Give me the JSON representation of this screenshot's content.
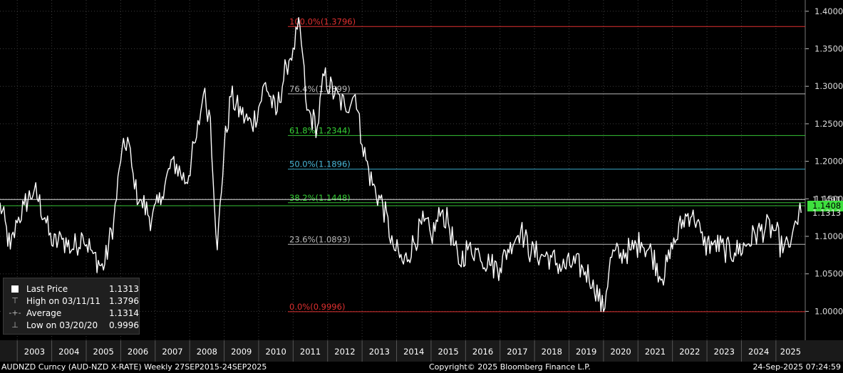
{
  "chart_data": {
    "type": "line",
    "title": "",
    "xlabel": "",
    "ylabel": "",
    "x_tick_labels": [
      "2003",
      "2004",
      "2005",
      "2006",
      "2007",
      "2008",
      "2009",
      "2010",
      "2011",
      "2012",
      "2013",
      "2014",
      "2015",
      "2016",
      "2017",
      "2018",
      "2019",
      "2020",
      "2021",
      "2022",
      "2023",
      "2024",
      "2025"
    ],
    "y_tick_labels": [
      "1.4000",
      "1.3500",
      "1.3000",
      "1.2500",
      "1.2000",
      "1.1500",
      "1.1000",
      "1.0500",
      "1.0000"
    ],
    "ylim": [
      0.9615,
      1.415
    ],
    "xlim": [
      2002.5,
      2025.85
    ],
    "grid": true,
    "series": [
      {
        "name": "AUDNZD Curncy",
        "color": "#ffffff",
        "x": [
          2002.5,
          2002.8,
          2003.0,
          2003.2,
          2003.5,
          2003.8,
          2004.0,
          2004.3,
          2004.6,
          2004.9,
          2005.2,
          2005.5,
          2005.8,
          2006.0,
          2006.2,
          2006.4,
          2006.6,
          2006.9,
          2007.2,
          2007.5,
          2007.9,
          2008.2,
          2008.4,
          2008.6,
          2008.8,
          2009.0,
          2009.2,
          2009.5,
          2009.8,
          2010.0,
          2010.2,
          2010.5,
          2010.8,
          2011.0,
          2011.2,
          2011.4,
          2011.7,
          2011.9,
          2012.2,
          2012.5,
          2012.8,
          2013.0,
          2013.3,
          2013.6,
          2013.9,
          2014.2,
          2014.5,
          2014.8,
          2015.0,
          2015.3,
          2015.5,
          2015.8,
          2016.1,
          2016.4,
          2016.7,
          2017.0,
          2017.3,
          2017.6,
          2017.9,
          2018.2,
          2018.5,
          2018.8,
          2019.1,
          2019.4,
          2019.7,
          2020.0,
          2020.2,
          2020.5,
          2020.8,
          2021.1,
          2021.4,
          2021.7,
          2022.0,
          2022.3,
          2022.6,
          2022.9,
          2023.2,
          2023.5,
          2023.8,
          2024.1,
          2024.4,
          2024.7,
          2025.0,
          2025.2,
          2025.45,
          2025.6,
          2025.73
        ],
        "values": [
          1.145,
          1.083,
          1.118,
          1.142,
          1.163,
          1.125,
          1.088,
          1.096,
          1.083,
          1.101,
          1.077,
          1.055,
          1.122,
          1.2,
          1.232,
          1.163,
          1.148,
          1.122,
          1.153,
          1.203,
          1.172,
          1.232,
          1.29,
          1.258,
          1.082,
          1.218,
          1.286,
          1.262,
          1.248,
          1.272,
          1.305,
          1.262,
          1.328,
          1.351,
          1.3796,
          1.268,
          1.246,
          1.314,
          1.288,
          1.274,
          1.289,
          1.222,
          1.168,
          1.142,
          1.088,
          1.063,
          1.092,
          1.12,
          1.0996,
          1.132,
          1.118,
          1.063,
          1.088,
          1.077,
          1.062,
          1.058,
          1.092,
          1.108,
          1.078,
          1.076,
          1.072,
          1.058,
          1.063,
          1.058,
          1.042,
          0.9996,
          1.072,
          1.078,
          1.082,
          1.092,
          1.078,
          1.043,
          1.083,
          1.122,
          1.135,
          1.088,
          1.092,
          1.083,
          1.078,
          1.088,
          1.102,
          1.112,
          1.108,
          1.078,
          1.096,
          1.118,
          1.1313
        ]
      }
    ],
    "fib_levels": [
      {
        "label": "100.0%(1.3796)",
        "value": 1.3796,
        "color": "#e03030",
        "text_color": "#e03030"
      },
      {
        "label": "76.4%(1.2899)",
        "value": 1.2899,
        "color": "#bbbbbb",
        "text_color": "#bbbbbb"
      },
      {
        "label": "61.8%(1.2344)",
        "value": 1.2344,
        "color": "#36c236",
        "text_color": "#36d236"
      },
      {
        "label": "50.0%(1.1896)",
        "value": 1.1896,
        "color": "#3aa7c8",
        "text_color": "#4ab8d8"
      },
      {
        "label": "38.2%(1.1448)",
        "value": 1.1448,
        "color": "#36c236",
        "text_color": "#36d236"
      },
      {
        "label": "23.6%(1.0893)",
        "value": 1.0893,
        "color": "#bbbbbb",
        "text_color": "#bbbbbb"
      },
      {
        "label": "0.0%(0.9996)",
        "value": 0.9996,
        "color": "#e03030",
        "text_color": "#e03030"
      }
    ],
    "extra_lines": [
      {
        "value": 1.1491,
        "color": "#dddddd"
      }
    ],
    "right_labels": [
      {
        "text": "1.1491",
        "value": 1.1491,
        "bg": "#000000",
        "fg": "#dddddd"
      },
      {
        "text": "1.1408",
        "value": 1.1408,
        "bg": "#3ee03e",
        "fg": "#000000"
      },
      {
        "text": "1.1313",
        "value": 1.1313,
        "bg": "#000000",
        "fg": "#dddddd"
      }
    ]
  },
  "legend": {
    "items": [
      {
        "icon": "square-icon",
        "label": "Last Price",
        "value": "1.1313"
      },
      {
        "icon": "high-marker-icon",
        "label": "High on 03/11/11",
        "value": "1.3796"
      },
      {
        "icon": "average-marker-icon",
        "label": "Average",
        "value": "1.1314"
      },
      {
        "icon": "low-marker-icon",
        "label": "Low on 03/20/20",
        "value": "0.9996"
      }
    ]
  },
  "footer": {
    "left": "AUDNZD Curncy (AUD-NZD X-RATE)  Weekly 27SEP2015-24SEP2025",
    "center": "Copyright© 2025 Bloomberg Finance L.P.",
    "right": "24-Sep-2025 07:24:59"
  }
}
